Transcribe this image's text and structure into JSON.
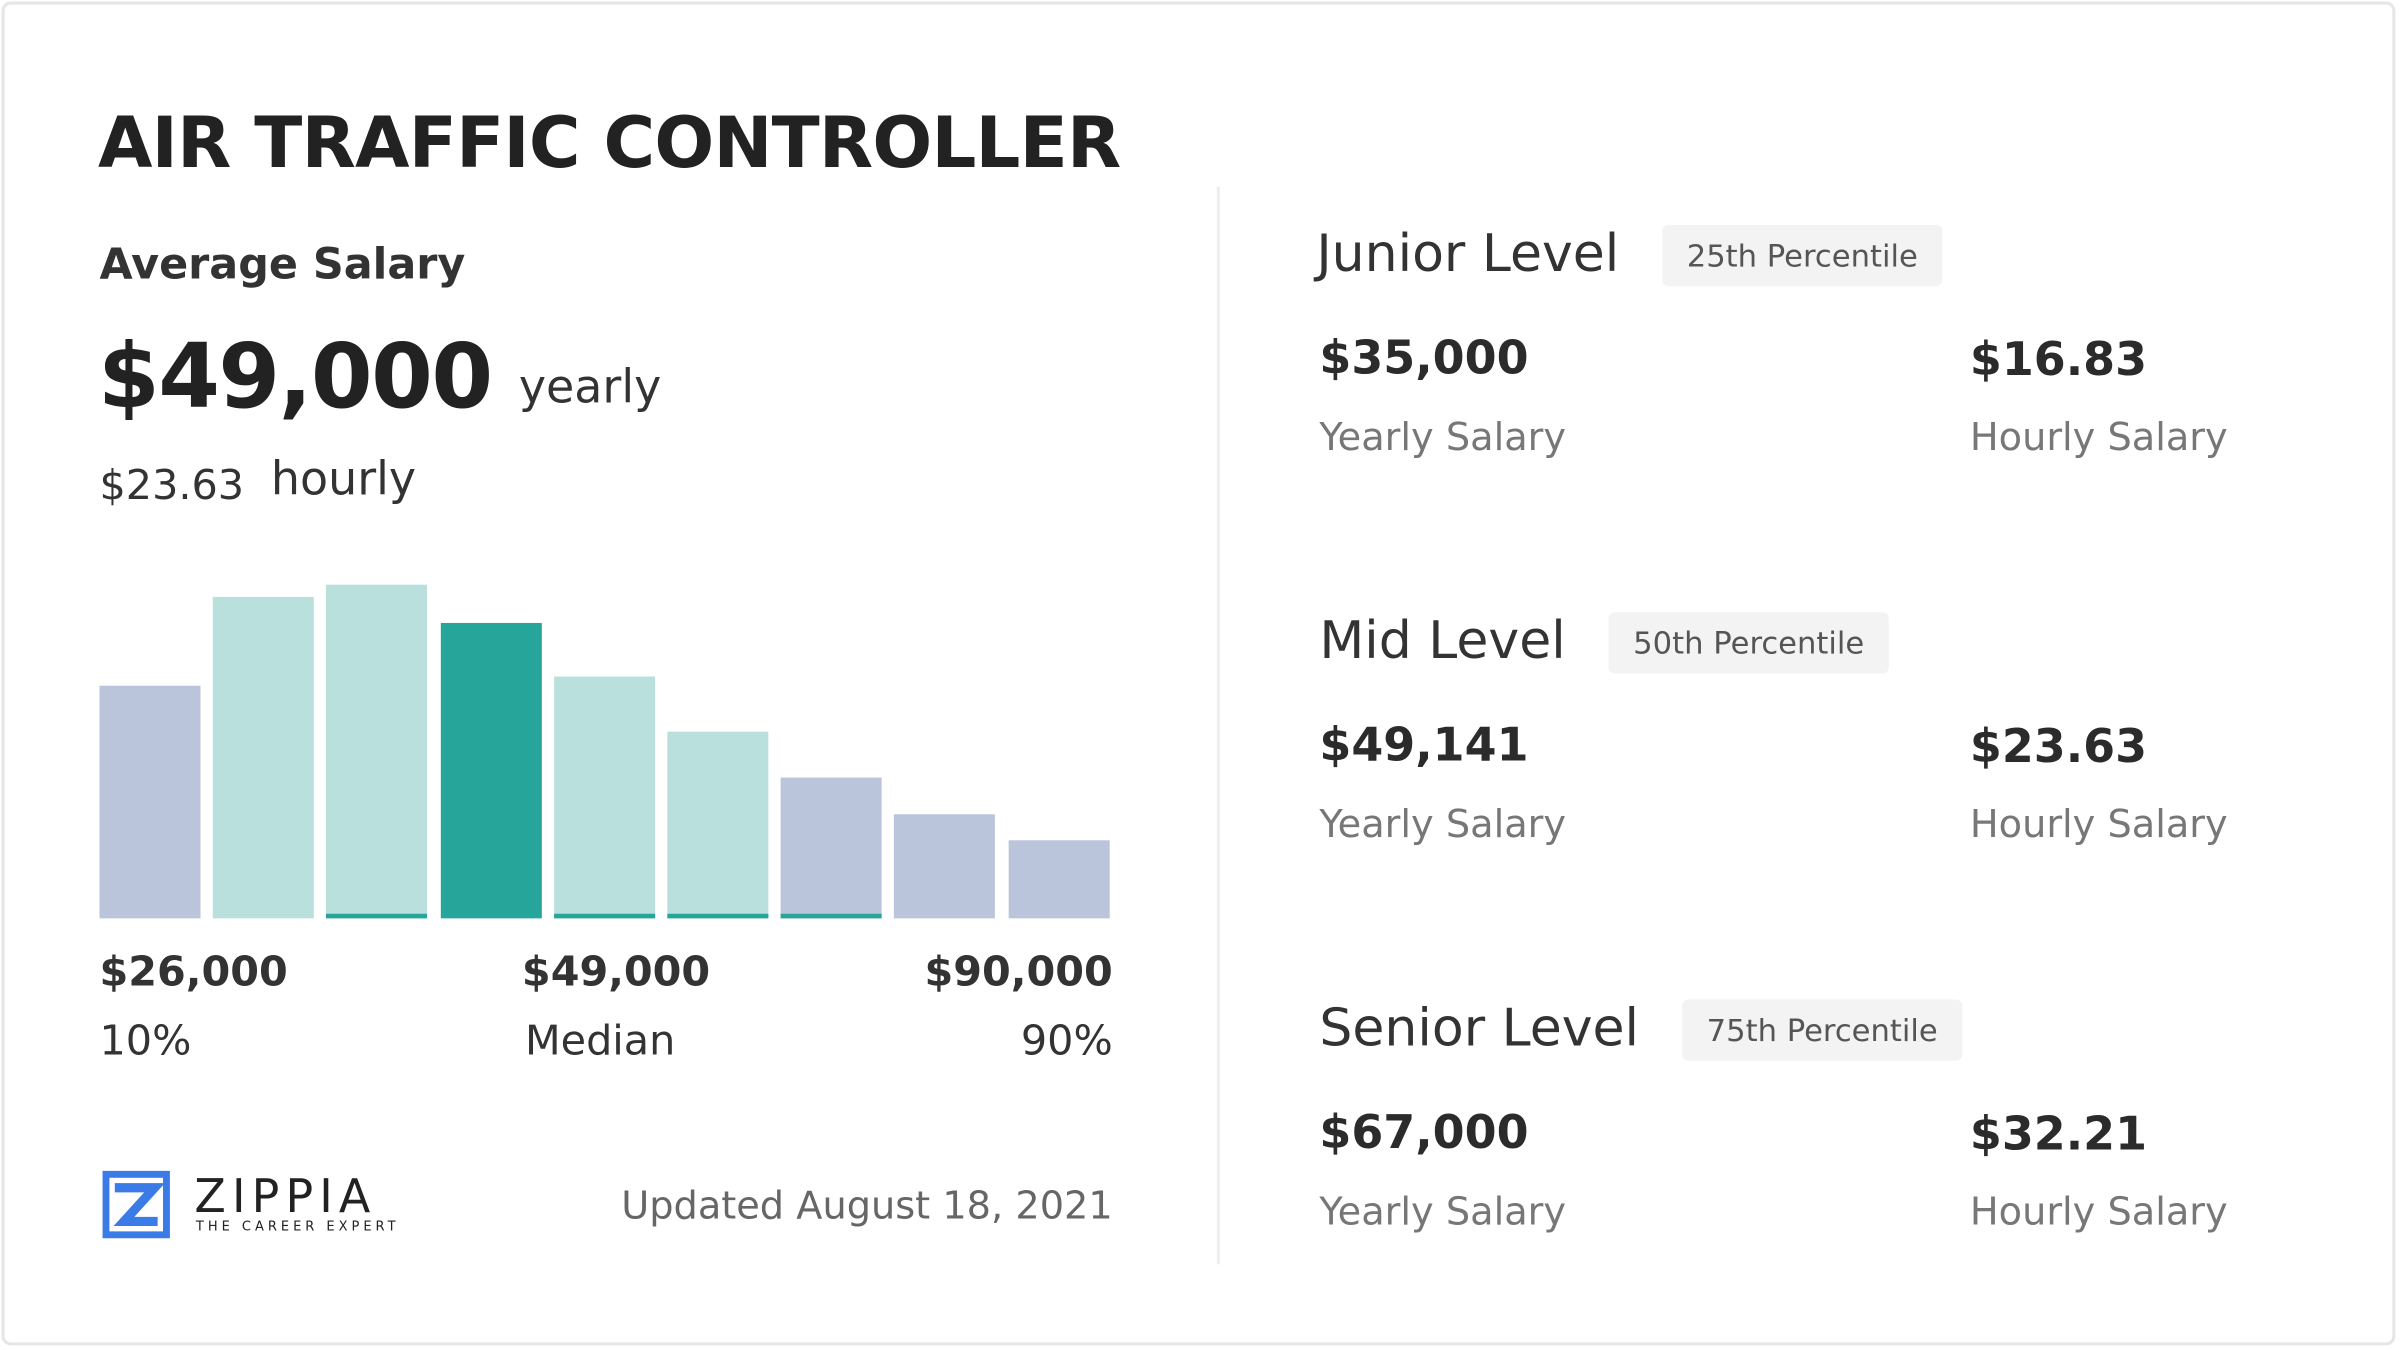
{
  "title": "AIR TRAFFIC CONTROLLER",
  "average": {
    "label": "Average Salary",
    "yearly_value": "$49,000",
    "yearly_label": "yearly",
    "hourly_value": "$23.63",
    "hourly_label": "hourly"
  },
  "histogram": {
    "relative_heights": [
      152,
      210,
      218,
      193,
      158,
      122,
      92,
      68,
      51
    ],
    "bar_styles": [
      "outer",
      "inner",
      "inner-marked",
      "median",
      "inner-marked",
      "inner-marked",
      "outer-marked",
      "outer",
      "outer"
    ],
    "colors": {
      "outer": "#bac4da",
      "inner": "#b9e0dc",
      "median": "#26a69a",
      "marker": "#26a69a"
    },
    "labels": [
      {
        "value": "$26,000",
        "caption": "10%"
      },
      {
        "value": "$49,000",
        "caption": "Median"
      },
      {
        "value": "$90,000",
        "caption": "90%"
      }
    ]
  },
  "logo": {
    "name": "ZIPPIA",
    "tagline": "THE CAREER EXPERT",
    "color": "#3b7be8"
  },
  "updated": "Updated August 18, 2021",
  "levels": [
    {
      "name": "Junior Level",
      "badge": "25th Percentile",
      "yearly": "$35,000",
      "yearly_label": "Yearly Salary",
      "hourly": "$16.83",
      "hourly_label": "Hourly Salary"
    },
    {
      "name": "Mid Level",
      "badge": "50th Percentile",
      "yearly": "$49,141",
      "yearly_label": "Yearly Salary",
      "hourly": "$23.63",
      "hourly_label": "Hourly Salary"
    },
    {
      "name": "Senior Level",
      "badge": "75th Percentile",
      "yearly": "$67,000",
      "yearly_label": "Yearly Salary",
      "hourly": "$32.21",
      "hourly_label": "Hourly Salary"
    }
  ]
}
